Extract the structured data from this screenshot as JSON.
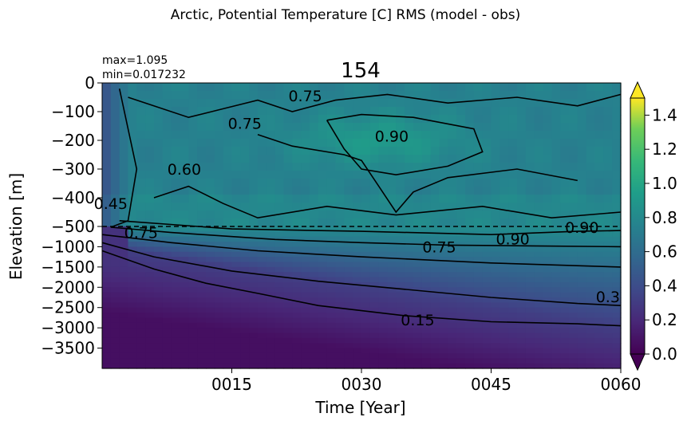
{
  "chart_data": {
    "type": "heatmap",
    "suptitle": "Arctic, Potential Temperature [C] RMS (model - obs)",
    "title": "154",
    "stats": {
      "max": "max=1.095",
      "min": "min=0.017232"
    },
    "xlabel": "Time [Year]",
    "ylabel": "Elevation [m]",
    "x_ticks": [
      "0015",
      "0030",
      "0045",
      "0060"
    ],
    "x_tick_values": [
      15,
      30,
      45,
      60
    ],
    "xlim": [
      0,
      60
    ],
    "y_ticks": [
      "0",
      "−100",
      "−200",
      "−300",
      "−400",
      "−500",
      "−1000",
      "−1500",
      "−2000",
      "−2500",
      "−3000",
      "−3500"
    ],
    "y_tick_values": [
      0,
      -100,
      -200,
      -300,
      -400,
      -500,
      -1000,
      -1500,
      -2000,
      -2500,
      -3000,
      -3500
    ],
    "y_scale": "piecewise: linear 0 to -500 upper part, linear -500 to -4000 lower part",
    "dashed_line_at": -500,
    "colorbar": {
      "colormap": "viridis",
      "range": [
        0.0,
        1.5
      ],
      "ticks": [
        "0.0",
        "0.2",
        "0.4",
        "0.6",
        "0.8",
        "1.0",
        "1.2",
        "1.4"
      ],
      "tick_values": [
        0.0,
        0.2,
        0.4,
        0.6,
        0.8,
        1.0,
        1.2,
        1.4
      ],
      "extend": "both"
    },
    "contour_levels": [
      0.15,
      0.3,
      0.45,
      0.6,
      0.75,
      0.9
    ],
    "contour_labels": [
      {
        "text": "0.75",
        "x": 23.5,
        "y": -45
      },
      {
        "text": "0.75",
        "x": 16.5,
        "y": -140
      },
      {
        "text": "0.90",
        "x": 33.5,
        "y": -185
      },
      {
        "text": "0.75",
        "x": 4.5,
        "y": -650
      },
      {
        "text": "0.60",
        "x": 9.5,
        "y": -300
      },
      {
        "text": "0.45",
        "x": 1.0,
        "y": -420
      },
      {
        "text": "0.75",
        "x": 39,
        "y": -1000
      },
      {
        "text": "0.90",
        "x": 47.5,
        "y": -800
      },
      {
        "text": "0.90",
        "x": 55.5,
        "y": -520
      },
      {
        "text": "0.15",
        "x": 36.5,
        "y": -2800
      },
      {
        "text": "0.3",
        "x": 58.5,
        "y": -2230
      }
    ],
    "grid": false
  }
}
